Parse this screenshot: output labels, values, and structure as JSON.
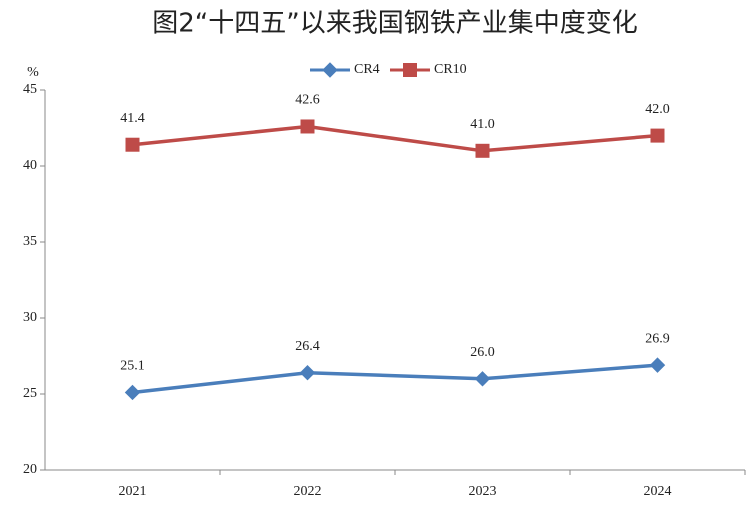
{
  "chart_data": {
    "type": "line",
    "title": "图2“十四五”以来我国钢铁产业集中度变化",
    "y_label": "%",
    "categories": [
      "2021",
      "2022",
      "2023",
      "2024"
    ],
    "series": [
      {
        "name": "CR4",
        "color": "#4a7ebb",
        "marker": "diamond",
        "values": [
          25.1,
          26.4,
          26.0,
          26.9
        ],
        "value_labels": [
          "25.1",
          "26.4",
          "26.0",
          "26.9"
        ]
      },
      {
        "name": "CR10",
        "color": "#be4b48",
        "marker": "square",
        "values": [
          41.4,
          42.6,
          41.0,
          42.0
        ],
        "value_labels": [
          "41.4",
          "42.6",
          "41.0",
          "42.0"
        ]
      }
    ],
    "ylim": [
      20,
      45
    ],
    "yticks": [
      20,
      25,
      30,
      35,
      40,
      45
    ],
    "grid": false,
    "legend": "top"
  }
}
